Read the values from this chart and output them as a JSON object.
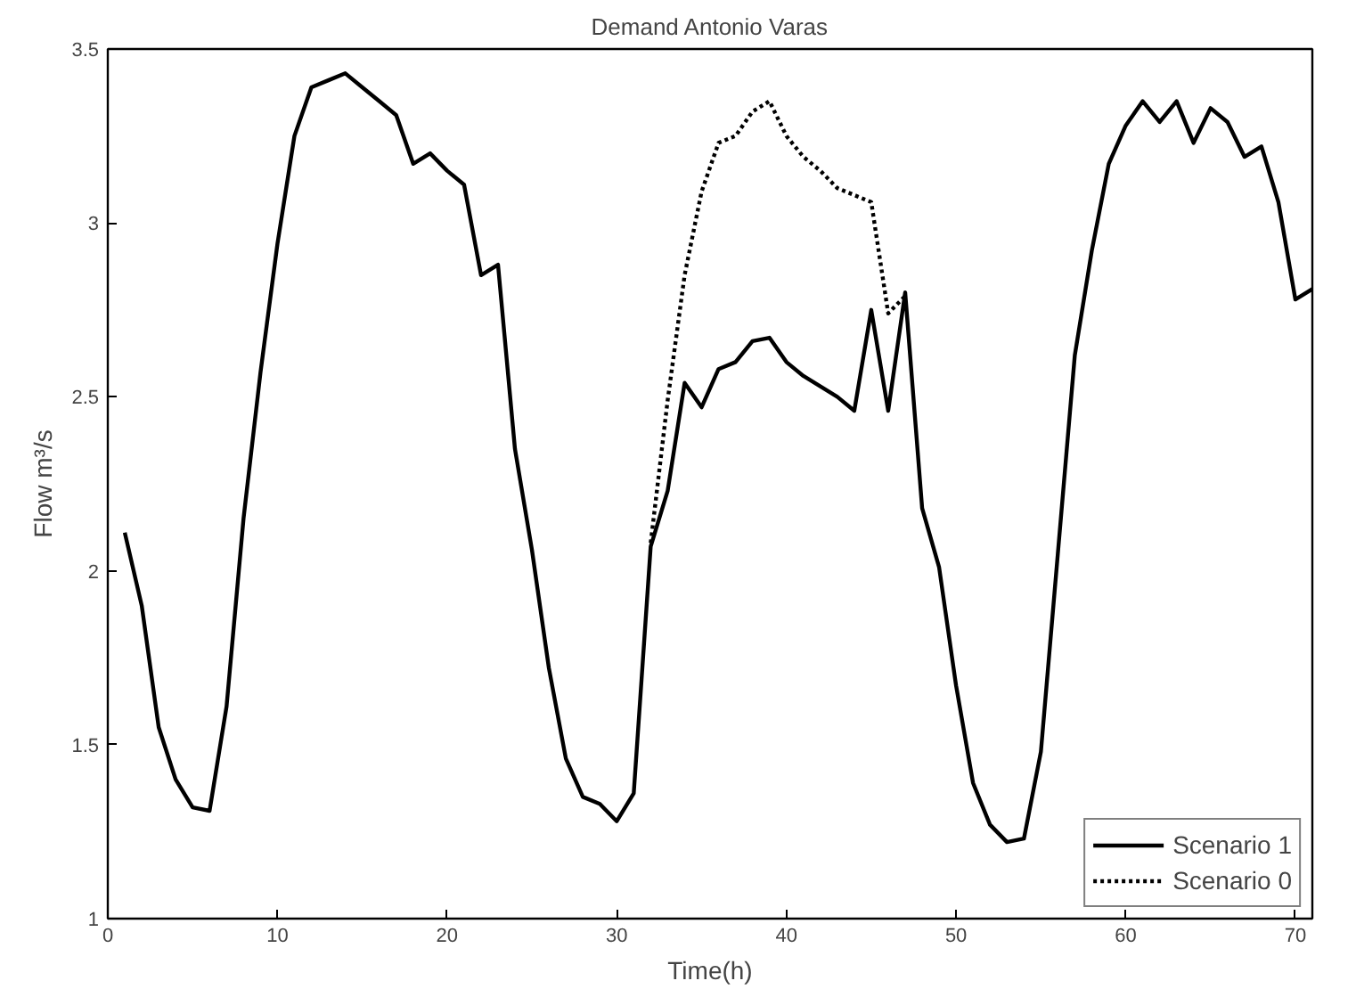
{
  "chart_data": {
    "type": "line",
    "title": "Demand Antonio Varas",
    "xlabel": "Time(h)",
    "ylabel": "Flow m³/s",
    "x": [
      1,
      2,
      3,
      4,
      5,
      6,
      7,
      8,
      9,
      10,
      11,
      12,
      13,
      14,
      15,
      16,
      17,
      18,
      19,
      20,
      21,
      22,
      23,
      24,
      25,
      26,
      27,
      28,
      29,
      30,
      31,
      32,
      33,
      34,
      35,
      36,
      37,
      38,
      39,
      40,
      41,
      42,
      43,
      44,
      45,
      46,
      47,
      48,
      49,
      50,
      51,
      52,
      53,
      54,
      55,
      56,
      57,
      58,
      59,
      60,
      61,
      62,
      63,
      64,
      65,
      66,
      67,
      68,
      69,
      70,
      71
    ],
    "series": [
      {
        "name": "Scenario 1",
        "color": "#000000",
        "line_style": "solid",
        "values": [
          2.11,
          1.9,
          1.55,
          1.4,
          1.32,
          1.31,
          1.61,
          2.15,
          2.57,
          2.94,
          3.25,
          3.39,
          3.41,
          3.43,
          3.39,
          3.35,
          3.31,
          3.17,
          3.2,
          3.15,
          3.11,
          2.85,
          2.88,
          2.35,
          2.06,
          1.72,
          1.46,
          1.35,
          1.33,
          1.28,
          1.36,
          2.07,
          2.23,
          2.54,
          2.47,
          2.58,
          2.6,
          2.66,
          2.67,
          2.6,
          2.56,
          2.53,
          2.5,
          2.46,
          2.75,
          2.46,
          2.8,
          2.18,
          2.01,
          1.67,
          1.39,
          1.27,
          1.22,
          1.23,
          1.48,
          2.05,
          2.62,
          2.92,
          3.17,
          3.28,
          3.35,
          3.29,
          3.35,
          3.23,
          3.33,
          3.29,
          3.19,
          3.22,
          3.06,
          2.78,
          2.81
        ]
      },
      {
        "name": "Scenario 0",
        "color": "#000000",
        "line_style": "dotted",
        "x": [
          32,
          33,
          34,
          35,
          36,
          37,
          38,
          39,
          40,
          41,
          42,
          43,
          44,
          45,
          46,
          47
        ],
        "values": [
          2.08,
          2.49,
          2.85,
          3.09,
          3.23,
          3.25,
          3.32,
          3.35,
          3.25,
          3.19,
          3.15,
          3.1,
          3.08,
          3.06,
          2.74,
          2.79
        ]
      }
    ],
    "xlim": [
      0,
      71
    ],
    "ylim": [
      1,
      3.5
    ],
    "xticks": [
      0,
      10,
      20,
      30,
      40,
      50,
      60,
      70
    ],
    "yticks": [
      1,
      1.5,
      2,
      2.5,
      3,
      3.5
    ],
    "grid": false,
    "legend": "bottom right",
    "marker": "none"
  }
}
